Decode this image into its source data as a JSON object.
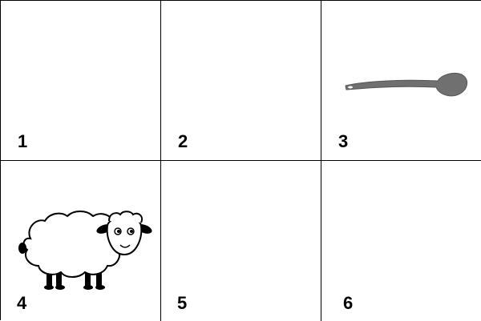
{
  "cells": [
    {
      "number": "1",
      "image": null
    },
    {
      "number": "2",
      "image": null
    },
    {
      "number": "3",
      "image": "spoon"
    },
    {
      "number": "4",
      "image": "sheep"
    },
    {
      "number": "5",
      "image": null
    },
    {
      "number": "6",
      "image": null
    }
  ],
  "colors": {
    "border": "#000000",
    "background": "#ffffff",
    "spoon": "#707070",
    "sheep_fill": "#ffffff",
    "sheep_outline": "#000000"
  }
}
